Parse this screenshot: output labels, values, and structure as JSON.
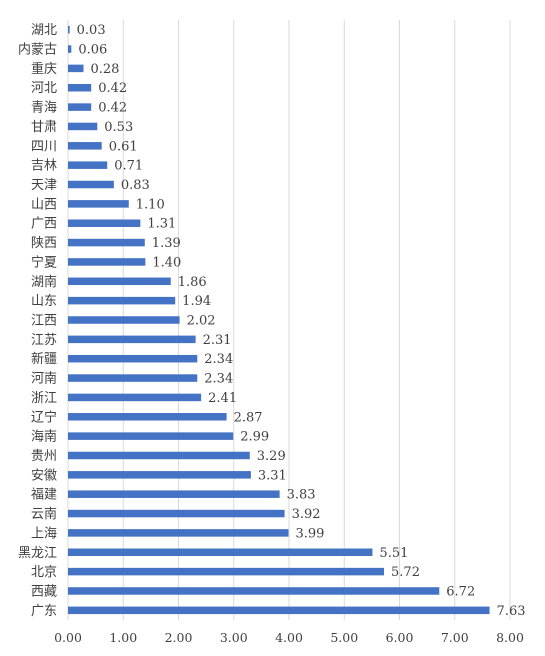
{
  "chart_data": {
    "type": "bar",
    "orientation": "horizontal",
    "categories": [
      "湖北",
      "内蒙古",
      "重庆",
      "河北",
      "青海",
      "甘肃",
      "四川",
      "吉林",
      "天津",
      "山西",
      "广西",
      "陕西",
      "宁夏",
      "湖南",
      "山东",
      "江西",
      "江苏",
      "新疆",
      "河南",
      "浙江",
      "辽宁",
      "海南",
      "贵州",
      "安徽",
      "福建",
      "云南",
      "上海",
      "黑龙江",
      "北京",
      "西藏",
      "广东"
    ],
    "values": [
      0.03,
      0.06,
      0.28,
      0.42,
      0.42,
      0.53,
      0.61,
      0.71,
      0.83,
      1.1,
      1.31,
      1.39,
      1.4,
      1.86,
      1.94,
      2.02,
      2.31,
      2.34,
      2.34,
      2.41,
      2.87,
      2.99,
      3.29,
      3.31,
      3.83,
      3.92,
      3.99,
      5.51,
      5.72,
      6.72,
      7.63
    ],
    "value_labels": [
      "0.03",
      "0.06",
      "0.28",
      "0.42",
      "0.42",
      "0.53",
      "0.61",
      "0.71",
      "0.83",
      "1.10",
      "1.31",
      "1.39",
      "1.40",
      "1.86",
      "1.94",
      "2.02",
      "2.31",
      "2.34",
      "2.34",
      "2.41",
      "2.87",
      "2.99",
      "3.29",
      "3.31",
      "3.83",
      "3.92",
      "3.99",
      "5.51",
      "5.72",
      "6.72",
      "7.63"
    ],
    "x_ticks": [
      "0.00",
      "1.00",
      "2.00",
      "3.00",
      "4.00",
      "5.00",
      "6.00",
      "7.00",
      "8.00"
    ],
    "xlim": [
      0,
      8
    ],
    "grid": "vertical",
    "bar_color": "#4472C4",
    "title": "",
    "xlabel": "",
    "ylabel": ""
  }
}
